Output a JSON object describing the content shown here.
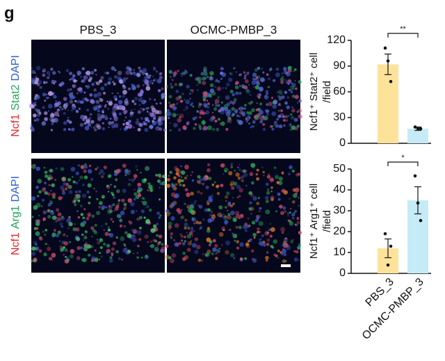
{
  "panel_label": "g",
  "image_columns": [
    "PBS_3",
    "OCMC-PMBP_3"
  ],
  "image_rows": [
    {
      "markers": [
        {
          "text": "Ncf1",
          "color": "#e0262b"
        },
        {
          "text": "Stat2",
          "color": "#1fa45a"
        },
        {
          "text": "DAPI",
          "color": "#2c5fd0"
        }
      ]
    },
    {
      "markers": [
        {
          "text": "Ncf1",
          "color": "#e0262b"
        },
        {
          "text": "Arg1",
          "color": "#1fa45a"
        },
        {
          "text": "DAPI",
          "color": "#2c5fd0"
        }
      ]
    }
  ],
  "chart_data": [
    {
      "type": "bar",
      "ylabel": [
        "Ncf1⁺ Stat2⁺ cell",
        "/field"
      ],
      "values": [
        92,
        17
      ],
      "errors": [
        12,
        2
      ],
      "points": [
        [
          111,
          96,
          72
        ],
        [
          19,
          17,
          17
        ]
      ],
      "colors": [
        "#fde39a",
        "#c5ecf6"
      ],
      "significance": "**",
      "ylim": [
        0,
        120
      ],
      "yticks": [
        0,
        30,
        60,
        90,
        120
      ]
    },
    {
      "type": "bar",
      "ylabel": [
        "Ncf1⁺ Arg1⁺ cell",
        "/field"
      ],
      "categories": [
        "PBS_3",
        "OCMC-PMBP_3"
      ],
      "values": [
        12,
        35
      ],
      "errors": [
        4.5,
        6.5
      ],
      "points": [
        [
          19,
          4,
          13
        ],
        [
          46.7,
          33.7,
          25.3
        ]
      ],
      "colors": [
        "#fde39a",
        "#c5ecf6"
      ],
      "significance": "*",
      "ylim": [
        0,
        50
      ],
      "yticks": [
        0,
        10,
        20,
        30,
        40,
        50
      ]
    }
  ]
}
